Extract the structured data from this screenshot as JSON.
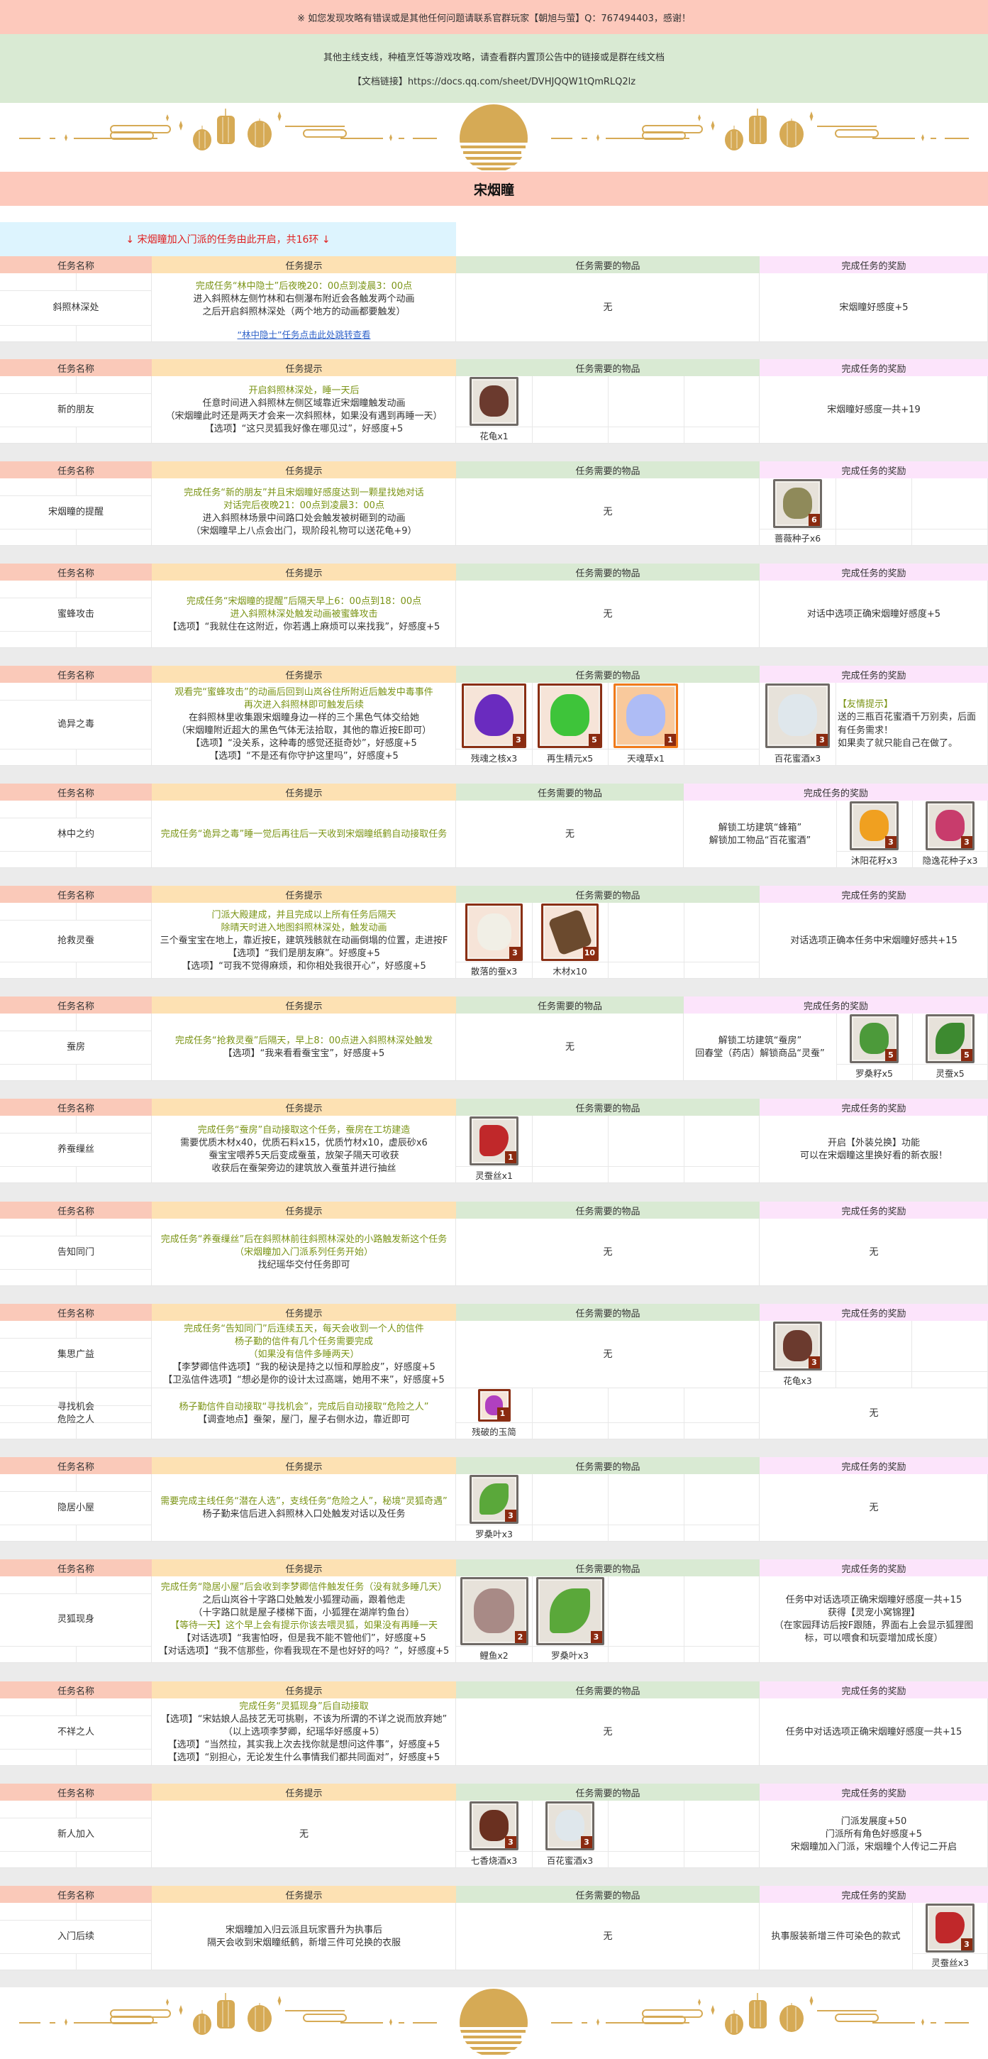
{
  "notice": "※ 如您发现攻略有错误或是其他任何问题请联系官群玩家【朝旭与萤】Q：767494403，感谢！",
  "info": {
    "line1": "其他主线支线，种植烹饪等游戏攻略，请查看群内置顶公告中的链接或是群在线文档",
    "line2": "【文档链接】https://docs.qq.com/sheet/DVHJQQW1tQmRLQ2lz"
  },
  "title": "宋烟瞳",
  "intro": "↓ 宋烟瞳加入门派的任务由此开启，共16环 ↓",
  "headers": {
    "name": "任务名称",
    "hint": "任务提示",
    "items": "任务需要的物品",
    "reward": "完成任务的奖励"
  },
  "none_text": "无",
  "colors": {
    "header_name": "#fac9b9",
    "header_hint": "#fde1b3",
    "header_items": "#d9ead3",
    "header_reward": "#fce4fb",
    "hint_green": "#7b9416",
    "intro_red": "#e02020",
    "gold": "#d6aa55"
  },
  "sections": [
    {
      "rows": [
        {
          "name": [
            "斜照林深处"
          ],
          "hint": [
            {
              "t": "完成任务“林中隐士”后夜晚20：00点到凌晨3：00点",
              "g": true
            },
            {
              "t": "进入斜照林左侧竹林和右侧瀑布附近会各触发两个动画"
            },
            {
              "t": "之后开启斜照林深处（两个地方的动画都要触发）"
            }
          ],
          "link": "“林中隐士”任务点击此处跳转查看",
          "items": [],
          "reward": {
            "text": [
              "宋烟瞳好感度+5"
            ]
          }
        }
      ]
    },
    {
      "rows": [
        {
          "name": [
            "新的朋友"
          ],
          "hint": [
            {
              "t": "开启斜照林深处，睡一天后",
              "g": true
            },
            {
              "t": "任意时间进入斜照林左侧区域靠近宋烟瞳触发动画"
            },
            {
              "t": "（宋烟瞳此时还是两天才会来一次斜照林，如果没有遇到再睡一天）"
            },
            {
              "t": "【选项】“这只灵狐我好像在哪见过”，好感度+5"
            }
          ],
          "items": [
            {
              "label": "花龟x1",
              "icon": "turtle",
              "color": "#6b3a2e",
              "frame": "gray"
            }
          ],
          "reward": {
            "text": [
              "宋烟瞳好感度一共+19"
            ]
          }
        }
      ]
    },
    {
      "rows": [
        {
          "name": [
            "宋烟瞳的提醒"
          ],
          "hint": [
            {
              "t": "完成任务“新的朋友”并且宋烟瞳好感度达到一颗星找她对话",
              "g": true
            },
            {
              "t": "对话完后夜晚21：00点到凌晨3：00点",
              "g": true
            },
            {
              "t": "进入斜照林场景中间路口处会触发被树砸到的动画"
            },
            {
              "t": "（宋烟瞳早上八点会出门，现阶段礼物可以送花龟+9）"
            }
          ],
          "items": [],
          "reward": {
            "items": [
              {
                "label": "蔷薇种子x6",
                "count": "6",
                "icon": "seed-bag",
                "color": "#8f8a5a",
                "frame": "gray"
              }
            ]
          }
        }
      ]
    },
    {
      "rows": [
        {
          "name": [
            "蜜蜂攻击"
          ],
          "hint": [
            {
              "t": "完成任务“宋烟瞳的提醒”后隔天早上6：00点到18：00点",
              "g": true
            },
            {
              "t": "进入斜照林深处触发动画被蜜蜂攻击",
              "g": true
            },
            {
              "t": "【选项】“我就住在这附近，你若遇上麻烦可以来找我”，好感度+5"
            }
          ],
          "items": [],
          "reward": {
            "text": [
              "对话中选项正确宋烟瞳好感度+5"
            ]
          }
        }
      ]
    },
    {
      "rows": [
        {
          "name": [
            "诡异之毒"
          ],
          "hint": [
            {
              "t": "观看完“蜜蜂攻击”的动画后回到山岚谷住所附近后触发中毒事件",
              "g": true
            },
            {
              "t": "再次进入斜照林即可触发后续",
              "g": true
            },
            {
              "t": "在斜照林里收集跟宋烟瞳身边一样的三个黑色气体交给她"
            },
            {
              "t": "（宋烟瞳附近超大的黑色气体无法拾取，其他的靠近按E即可）"
            },
            {
              "t": "【选项】“没关系，这种毒的感觉还挺奇妙”，好感度+5"
            },
            {
              "t": "【选项】“不是还有你守护这里吗”，好感度+5"
            }
          ],
          "items": [
            {
              "label": "残魂之核x3",
              "count": "3",
              "icon": "gem",
              "color": "#6a2bbf",
              "frame": "red"
            },
            {
              "label": "再生精元x5",
              "count": "5",
              "icon": "green-orb",
              "color": "#3ec43a",
              "frame": "red"
            },
            {
              "label": "天魂草x1",
              "count": "1",
              "icon": "herb",
              "color": "#aebcf5",
              "frame": "orange"
            }
          ],
          "reward": {
            "items": [
              {
                "label": "百花蜜酒x3",
                "count": "3",
                "icon": "wine-bottle",
                "color": "#dfe7ec",
                "frame": "gray"
              }
            ],
            "tip": {
              "title": "【友情提示】",
              "lines": [
                "送的三瓶百花蜜酒千万别卖，后面",
                "有任务需求！",
                "如果卖了就只能自己在做了。"
              ]
            }
          }
        }
      ]
    },
    {
      "wide_reward": true,
      "rows": [
        {
          "name": [
            "林中之约"
          ],
          "hint": [
            {
              "t": "完成任务“诡异之毒”睡一觉后再往后一天收到宋烟瞳纸鹤自动接取任务",
              "g": true
            }
          ],
          "items": [],
          "reward": {
            "text": [
              "解锁工坊建筑“蜂箱”",
              "解锁加工物品“百花蜜酒”"
            ],
            "items": [
              {
                "label": "沐阳花籽x3",
                "count": "3",
                "icon": "seed-bag",
                "color": "#f0a020",
                "frame": "gray"
              },
              {
                "label": "隐逸花种子x3",
                "count": "3",
                "icon": "seed-bag",
                "color": "#c83c6c",
                "frame": "gray"
              }
            ]
          }
        }
      ]
    },
    {
      "rows": [
        {
          "name": [
            "抢救灵蚕"
          ],
          "hint": [
            {
              "t": "门派大殿建成，并且完成以上所有任务后隔天",
              "g": true
            },
            {
              "t": "除晴天时进入地图斜照林深处，触发动画",
              "g": true
            },
            {
              "t": "三个蚕宝宝在地上，靠近按E，建筑残骸就在动画倒塌的位置，走进按F"
            },
            {
              "t": "【选项】“我们是朋友麻”。好感度+5"
            },
            {
              "t": "【选项】“可我不觉得麻烦，和你相处我很开心”，好感度+5"
            }
          ],
          "items": [
            {
              "label": "散落的蚕x3",
              "count": "3",
              "icon": "silkworm",
              "color": "#f1efe6",
              "frame": "red"
            },
            {
              "label": "木材x10",
              "count": "10",
              "icon": "wood",
              "color": "#6b4a2e",
              "frame": "red"
            }
          ],
          "reward": {
            "text": [
              "对话选项正确本任务中宋烟瞳好感共+15"
            ]
          }
        }
      ]
    },
    {
      "wide_reward": true,
      "rows": [
        {
          "name": [
            "蚕房"
          ],
          "hint": [
            {
              "t": "完成任务“抢救灵蚕”后隔天，早上8：00点进入斜照林深处触发",
              "g": true
            },
            {
              "t": "【选项】“我来看看蚕宝宝”，好感度+5"
            }
          ],
          "items": [],
          "reward": {
            "text": [
              "解锁工坊建筑“蚕房”",
              "回春堂（药店）解锁商品“灵蚕”"
            ],
            "items": [
              {
                "label": "罗桑籽x5",
                "count": "5",
                "icon": "seed-bag",
                "color": "#4c9a3a",
                "frame": "gray"
              },
              {
                "label": "灵蚕x5",
                "count": "5",
                "icon": "leaf",
                "color": "#3d8a30",
                "frame": "gray"
              }
            ]
          }
        }
      ]
    },
    {
      "rows": [
        {
          "name": [
            "养蚕缫丝"
          ],
          "hint": [
            {
              "t": "完成任务“蚕房”自动接取这个任务，蚕房在工坊建造",
              "g": true
            },
            {
              "t": "需要优质木材x40，优质石料x15，优质竹材x10，虚辰砂x6"
            },
            {
              "t": "蚕宝宝喂养5天后变成蚕茧，放架子隔天可收获"
            },
            {
              "t": "收获后在蚕架旁边的建筑放入蚕茧并进行抽丝"
            }
          ],
          "items": [
            {
              "label": "灵蚕丝x1",
              "count": "1",
              "icon": "silk-cloth",
              "color": "#c0282a",
              "frame": "gray"
            }
          ],
          "reward": {
            "text": [
              "开启【外装兑换】功能",
              "可以在宋烟瞳这里换好看的新衣服！"
            ]
          }
        }
      ]
    },
    {
      "rows": [
        {
          "name": [
            "告知同门"
          ],
          "hint": [
            {
              "t": "完成任务“养蚕缫丝”后在斜照林前往斜照林深处的小路触发新这个任务",
              "g": true
            },
            {
              "t": "（宋烟瞳加入门派系列任务开始）",
              "g": true
            },
            {
              "t": "找纪瑶华交付任务即可"
            }
          ],
          "items": [],
          "reward": {
            "text": [
              "无"
            ]
          }
        }
      ]
    },
    {
      "rows": [
        {
          "name": [
            "集思广益"
          ],
          "hint": [
            {
              "t": "完成任务“告知同门”后连续五天，每天会收到一个人的信件",
              "g": true
            },
            {
              "t": "杨子勤的信件有几个任务需要完成",
              "g": true
            },
            {
              "t": "（如果没有信件多睡两天）",
              "g": true
            },
            {
              "t": "【李梦卿信件选项】“我的秘诀是持之以恒和厚脸皮”，好感度+5"
            },
            {
              "t": "【卫泓信件选项】“想必是你的设计太过高端，她用不来”，好感度+5"
            }
          ],
          "items": [],
          "reward": {
            "items": [
              {
                "label": "花龟x3",
                "count": "3",
                "icon": "turtle",
                "color": "#6b3a2e",
                "frame": "gray"
              }
            ]
          }
        },
        {
          "name": [
            "寻找机会",
            "危险之人"
          ],
          "hint": [
            {
              "t": "杨子勤信件自动接取“寻找机会”，完成后自动接取“危险之人”",
              "g": true
            },
            {
              "t": "【调查地点】蚕架，屋门，屋子右侧水边，靠近即可"
            }
          ],
          "items": [
            {
              "label": "残破的玉简",
              "count": "1",
              "icon": "jade-slip",
              "color": "#b040c0",
              "frame": "red"
            }
          ],
          "reward": {
            "text": [
              "无"
            ]
          }
        }
      ]
    },
    {
      "rows": [
        {
          "name": [
            "隐居小屋"
          ],
          "hint": [
            {
              "t": "需要完成主线任务“潜在人选”，支线任务“危险之人”，秘境“灵狐奇遇”",
              "g": true
            },
            {
              "t": "杨子勤来信后进入斜照林入口处触发对话以及任务"
            }
          ],
          "items": [
            {
              "label": "罗桑叶x3",
              "count": "3",
              "icon": "leaf",
              "color": "#5aa83a",
              "frame": "gray"
            }
          ],
          "reward": {
            "text": [
              "无"
            ]
          }
        }
      ]
    },
    {
      "rows": [
        {
          "name": [
            "灵狐现身"
          ],
          "hint": [
            {
              "t": "完成任务“隐居小屋”后会收到李梦卿信件触发任务（没有就多睡几天）",
              "g": true
            },
            {
              "t": "之后山岚谷十字路口处触发小狐狸动画，跟着他走"
            },
            {
              "t": "（十字路口就是屋子楼梯下面，小狐狸在湖岸钓鱼台）"
            },
            {
              "t": "【等待一天】这个早上会有提示你该去喂灵狐，如果没有再睡一天",
              "g": true
            },
            {
              "t": "【对话选项】“我害怕呀，但是我不能不管他们”，好感度+5"
            },
            {
              "t": "【对话选项】“我不信那些，你看我现在不是也好好的吗？”，好感度+5"
            }
          ],
          "items": [
            {
              "label": "鲤鱼x2",
              "count": "2",
              "icon": "fish",
              "color": "#a88a86",
              "frame": "gray"
            },
            {
              "label": "罗桑叶x3",
              "count": "3",
              "icon": "leaf",
              "color": "#5aa83a",
              "frame": "gray"
            }
          ],
          "reward": {
            "text": [
              "任务中对话选项正确宋烟瞳好感度一共+15",
              "获得【灵宠小窝锦狸】",
              "（在家园拜访后按F跟随，界面右上会显示狐狸图",
              "标，可以喂食和玩耍增加成长度）"
            ]
          }
        }
      ]
    },
    {
      "rows": [
        {
          "name": [
            "不祥之人"
          ],
          "hint": [
            {
              "t": "完成任务“灵狐现身”后自动接取",
              "g": true
            },
            {
              "t": "【选项】“宋姑娘人品技艺无可挑剔，不该为所谓的不详之说而放弃她”"
            },
            {
              "t": "（以上选项李梦卿，纪瑶华好感度+5）"
            },
            {
              "t": "【选项】“当然拉，其实我上次去找你就是想问这件事”，好感度+5"
            },
            {
              "t": "【选项】“别担心，无论发生什么事情我们都共同面对”，好感度+5"
            }
          ],
          "items": [],
          "reward": {
            "text": [
              "任务中对话选项正确宋烟瞳好感度一共+15"
            ]
          }
        }
      ]
    },
    {
      "rows": [
        {
          "name": [
            "新人加入"
          ],
          "hint": [
            {
              "t": "无"
            }
          ],
          "items": [
            {
              "label": "七香烧酒x3",
              "count": "3",
              "icon": "wine-jar",
              "color": "#6a3020",
              "frame": "gray"
            },
            {
              "label": "百花蜜酒x3",
              "count": "3",
              "icon": "wine-bottle",
              "color": "#dfe7ec",
              "frame": "gray"
            }
          ],
          "reward": {
            "text": [
              "门派发展度+50",
              "门派所有角色好感度+5",
              "宋烟瞳加入门派，宋烟瞳个人传记二开启"
            ]
          }
        }
      ]
    },
    {
      "rows": [
        {
          "name": [
            "入门后续"
          ],
          "hint": [
            {
              "t": "宋烟瞳加入归云派且玩家晋升为执事后"
            },
            {
              "t": "隔天会收到宋烟瞳纸鹤，新增三件可兑换的衣服"
            }
          ],
          "items": [],
          "reward": {
            "text": [
              "执事服装新增三件可染色的款式"
            ],
            "items": [
              {
                "label": "灵蚕丝x3",
                "count": "3",
                "icon": "silk-cloth",
                "color": "#c0282a",
                "frame": "gray"
              }
            ]
          }
        }
      ]
    }
  ]
}
